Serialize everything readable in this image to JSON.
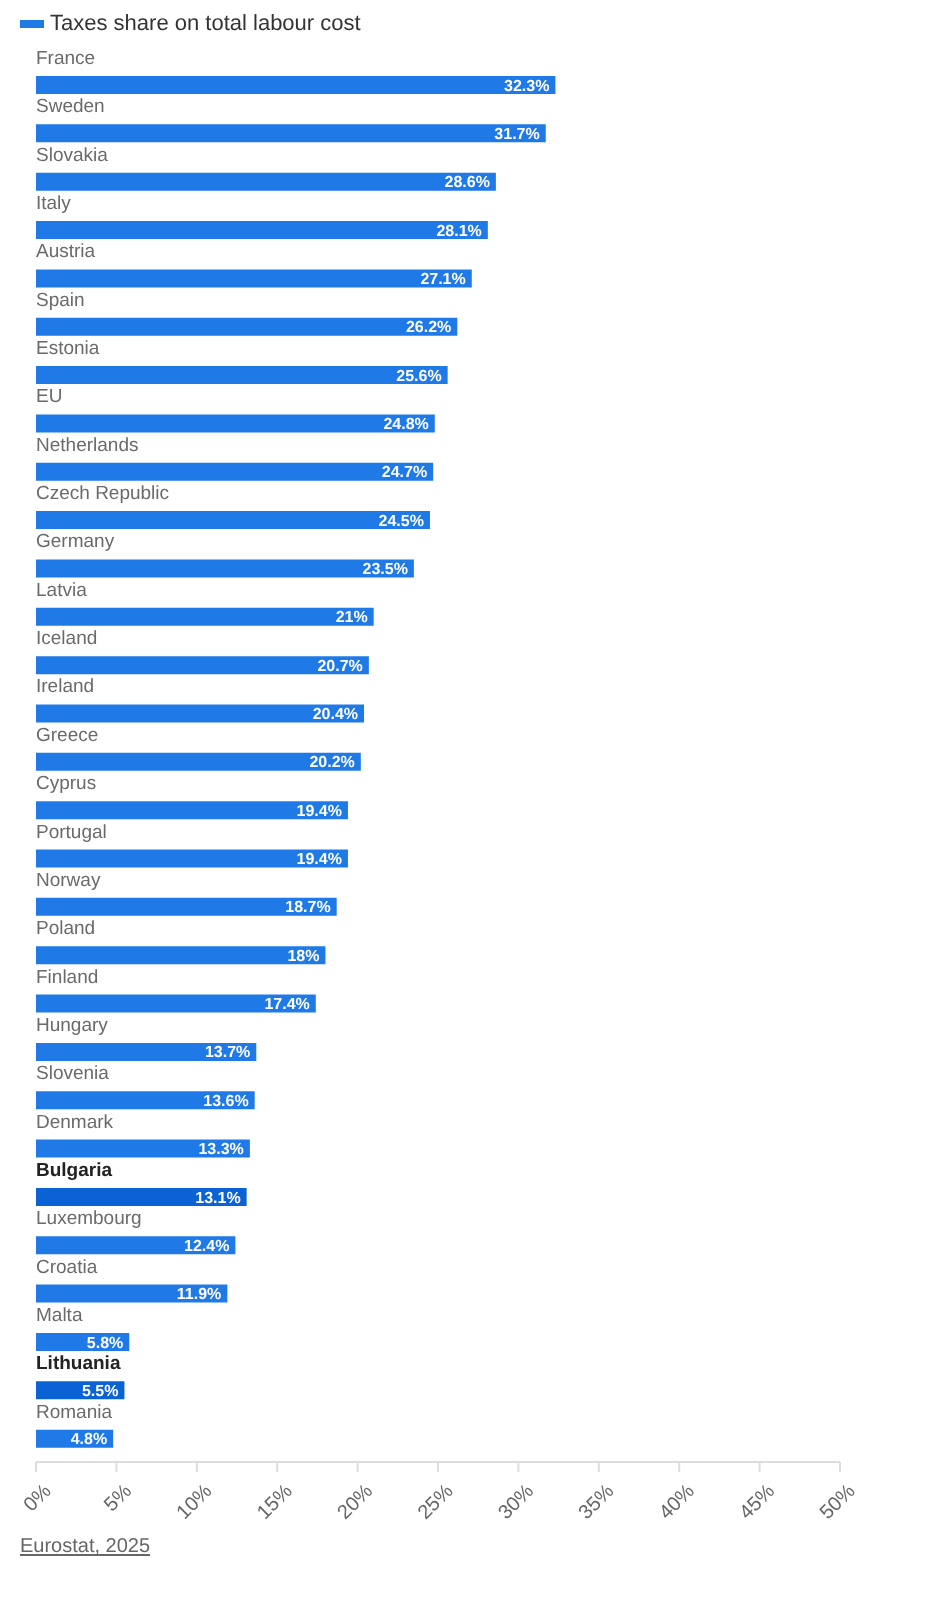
{
  "chart_data": {
    "type": "bar",
    "orientation": "horizontal",
    "legend": "top left",
    "categories": [
      "France",
      "Sweden",
      "Slovakia",
      "Italy",
      "Austria",
      "Spain",
      "Estonia",
      "EU",
      "Netherlands",
      "Czech Republic",
      "Germany",
      "Latvia",
      "Iceland",
      "Ireland",
      "Greece",
      "Cyprus",
      "Portugal",
      "Norway",
      "Poland",
      "Finland",
      "Hungary",
      "Slovenia",
      "Denmark",
      "Bulgaria",
      "Luxembourg",
      "Croatia",
      "Malta",
      "Lithuania",
      "Romania"
    ],
    "series": [
      {
        "name": "Taxes share on total labour cost",
        "color": "#1f7ae8",
        "values": [
          32.3,
          31.7,
          28.6,
          28.1,
          27.1,
          26.2,
          25.6,
          24.8,
          24.7,
          24.5,
          23.5,
          21,
          20.7,
          20.4,
          20.2,
          19.4,
          19.4,
          18.7,
          18,
          17.4,
          13.7,
          13.6,
          13.3,
          13.1,
          12.4,
          11.9,
          5.8,
          5.5,
          4.8
        ],
        "colors": [
          "#1f7ae8",
          "#1f7ae8",
          "#1f7ae8",
          "#1f7ae8",
          "#1f7ae8",
          "#1f7ae8",
          "#1f7ae8",
          "#1f7ae8",
          "#1f7ae8",
          "#1f7ae8",
          "#1f7ae8",
          "#1f7ae8",
          "#1f7ae8",
          "#1f7ae8",
          "#1f7ae8",
          "#1f7ae8",
          "#1f7ae8",
          "#1f7ae8",
          "#1f7ae8",
          "#1f7ae8",
          "#1f7ae8",
          "#1f7ae8",
          "#1f7ae8",
          "#0b62d5",
          "#1f7ae8",
          "#1f7ae8",
          "#1f7ae8",
          "#0b62d5",
          "#1f7ae8"
        ],
        "value_labels": [
          "32.3%",
          "31.7%",
          "28.6%",
          "28.1%",
          "27.1%",
          "26.2%",
          "25.6%",
          "24.8%",
          "24.7%",
          "24.5%",
          "23.5%",
          "21%",
          "20.7%",
          "20.4%",
          "20.2%",
          "19.4%",
          "19.4%",
          "18.7%",
          "18%",
          "17.4%",
          "13.7%",
          "13.6%",
          "13.3%",
          "13.1%",
          "12.4%",
          "11.9%",
          "5.8%",
          "5.5%",
          "4.8%"
        ]
      }
    ],
    "xlim": [
      0,
      50
    ],
    "xticks": [
      {
        "value": 0,
        "label": "0%"
      },
      {
        "value": 5,
        "label": "5%"
      },
      {
        "value": 10,
        "label": "10%"
      },
      {
        "value": 15,
        "label": "15%"
      },
      {
        "value": 20,
        "label": "20%"
      },
      {
        "value": 25,
        "label": "25%"
      },
      {
        "value": 30,
        "label": "30%"
      },
      {
        "value": 35,
        "label": "35%"
      },
      {
        "value": 40,
        "label": "40%"
      },
      {
        "value": 45,
        "label": "45%"
      },
      {
        "value": 50,
        "label": "50%"
      }
    ],
    "annotations": [
      "Eurostat, 2025"
    ]
  }
}
